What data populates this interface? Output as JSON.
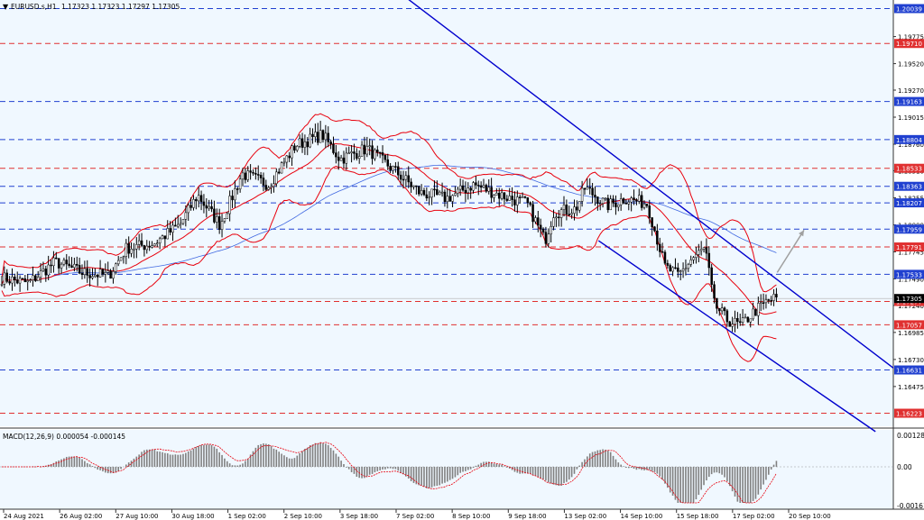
{
  "header": {
    "symbol_label": "EURUSD.s,H1",
    "ohlc_text": "1.17323 1.17323 1.17297 1.17305"
  },
  "macd": {
    "label": "MACD(12,26,9) 0.000054 -0.000145",
    "ticks": [
      "0.001285",
      "0.00",
      "-0.001618"
    ]
  },
  "colors": {
    "background": "#f0f8ff",
    "candles": "#000000",
    "bollinger": "#e8000d",
    "ma_blue": "#4169e1",
    "channel": "#0000cd",
    "level_blue": "#2040d0",
    "level_red": "#e03030",
    "arrow": "#a0a0a0"
  },
  "chart_data": {
    "type": "candlestick",
    "title": "",
    "y_axis": {
      "min": 1.161,
      "max": 1.2012,
      "ticks": [
        "1.19775",
        "1.19520",
        "1.19270",
        "1.19015",
        "1.18760",
        "1.18510",
        "1.18255",
        "1.18000",
        "1.17745",
        "1.17490",
        "1.17240",
        "1.16985",
        "1.16730",
        "1.16475"
      ]
    },
    "x_axis": {
      "labels": [
        "24 Aug 2021",
        "26 Aug 02:00",
        "27 Aug 10:00",
        "30 Aug 18:00",
        "1 Sep 02:00",
        "2 Sep 10:00",
        "3 Sep 18:00",
        "7 Sep 02:00",
        "8 Sep 10:00",
        "9 Sep 18:00",
        "13 Sep 02:00",
        "14 Sep 10:00",
        "15 Sep 18:00",
        "17 Sep 02:00",
        "20 Sep 10:00"
      ]
    },
    "price_levels": [
      {
        "value": 1.20039,
        "label": "1.20039",
        "color": "blue"
      },
      {
        "value": 1.1971,
        "label": "1.19710",
        "color": "red"
      },
      {
        "value": 1.19163,
        "label": "1.19163",
        "color": "blue"
      },
      {
        "value": 1.18804,
        "label": "1.18804",
        "color": "blue"
      },
      {
        "value": 1.18533,
        "label": "1.18533",
        "color": "red"
      },
      {
        "value": 1.18363,
        "label": "1.18363",
        "color": "blue"
      },
      {
        "value": 1.18207,
        "label": "1.18207",
        "color": "blue"
      },
      {
        "value": 1.17959,
        "label": "1.17959",
        "color": "blue"
      },
      {
        "value": 1.17791,
        "label": "1.17791",
        "color": "red"
      },
      {
        "value": 1.17533,
        "label": "1.17533",
        "color": "blue"
      },
      {
        "value": 1.17277,
        "label": "1.17277",
        "color": "red"
      },
      {
        "value": 1.17057,
        "label": "1.17057",
        "color": "red"
      },
      {
        "value": 1.16631,
        "label": "1.16631",
        "color": "blue"
      },
      {
        "value": 1.16223,
        "label": "1.16223",
        "color": "red"
      }
    ],
    "current_price": {
      "value": 1.17305,
      "label": "1.17305"
    },
    "price_path": [
      {
        "t": 0,
        "p": 1.175
      },
      {
        "t": 0.03,
        "p": 1.1745
      },
      {
        "t": 0.06,
        "p": 1.1765
      },
      {
        "t": 0.09,
        "p": 1.1755
      },
      {
        "t": 0.12,
        "p": 1.1752
      },
      {
        "t": 0.14,
        "p": 1.1778
      },
      {
        "t": 0.17,
        "p": 1.1782
      },
      {
        "t": 0.2,
        "p": 1.18
      },
      {
        "t": 0.22,
        "p": 1.1828
      },
      {
        "t": 0.245,
        "p": 1.18
      },
      {
        "t": 0.27,
        "p": 1.1848
      },
      {
        "t": 0.3,
        "p": 1.1838
      },
      {
        "t": 0.33,
        "p": 1.1875
      },
      {
        "t": 0.36,
        "p": 1.1885
      },
      {
        "t": 0.38,
        "p": 1.1862
      },
      {
        "t": 0.41,
        "p": 1.1872
      },
      {
        "t": 0.44,
        "p": 1.1852
      },
      {
        "t": 0.47,
        "p": 1.183
      },
      {
        "t": 0.5,
        "p": 1.1825
      },
      {
        "t": 0.53,
        "p": 1.1838
      },
      {
        "t": 0.56,
        "p": 1.1828
      },
      {
        "t": 0.59,
        "p": 1.182
      },
      {
        "t": 0.61,
        "p": 1.1785
      },
      {
        "t": 0.62,
        "p": 1.1812
      },
      {
        "t": 0.645,
        "p": 1.1815
      },
      {
        "t": 0.655,
        "p": 1.1835
      },
      {
        "t": 0.68,
        "p": 1.1818
      },
      {
        "t": 0.7,
        "p": 1.1825
      },
      {
        "t": 0.725,
        "p": 1.182
      },
      {
        "t": 0.745,
        "p": 1.176
      },
      {
        "t": 0.76,
        "p": 1.1752
      },
      {
        "t": 0.775,
        "p": 1.1768
      },
      {
        "t": 0.79,
        "p": 1.1778
      },
      {
        "t": 0.8,
        "p": 1.1725
      },
      {
        "t": 0.815,
        "p": 1.171
      },
      {
        "t": 0.83,
        "p": 1.1705
      },
      {
        "t": 0.845,
        "p": 1.1718
      },
      {
        "t": 0.86,
        "p": 1.1728
      },
      {
        "t": 0.87,
        "p": 1.1731
      }
    ],
    "channel": {
      "upper": [
        {
          "t": 0.43,
          "p": 1.203
        },
        {
          "t": 1.0,
          "p": 1.1665
        }
      ],
      "lower": [
        {
          "t": 0.67,
          "p": 1.1785
        },
        {
          "t": 0.98,
          "p": 1.1605
        }
      ]
    },
    "arrow": {
      "from": {
        "t": 0.87,
        "p": 1.1755
      },
      "to": {
        "t": 0.9,
        "p": 1.1795
      }
    }
  }
}
